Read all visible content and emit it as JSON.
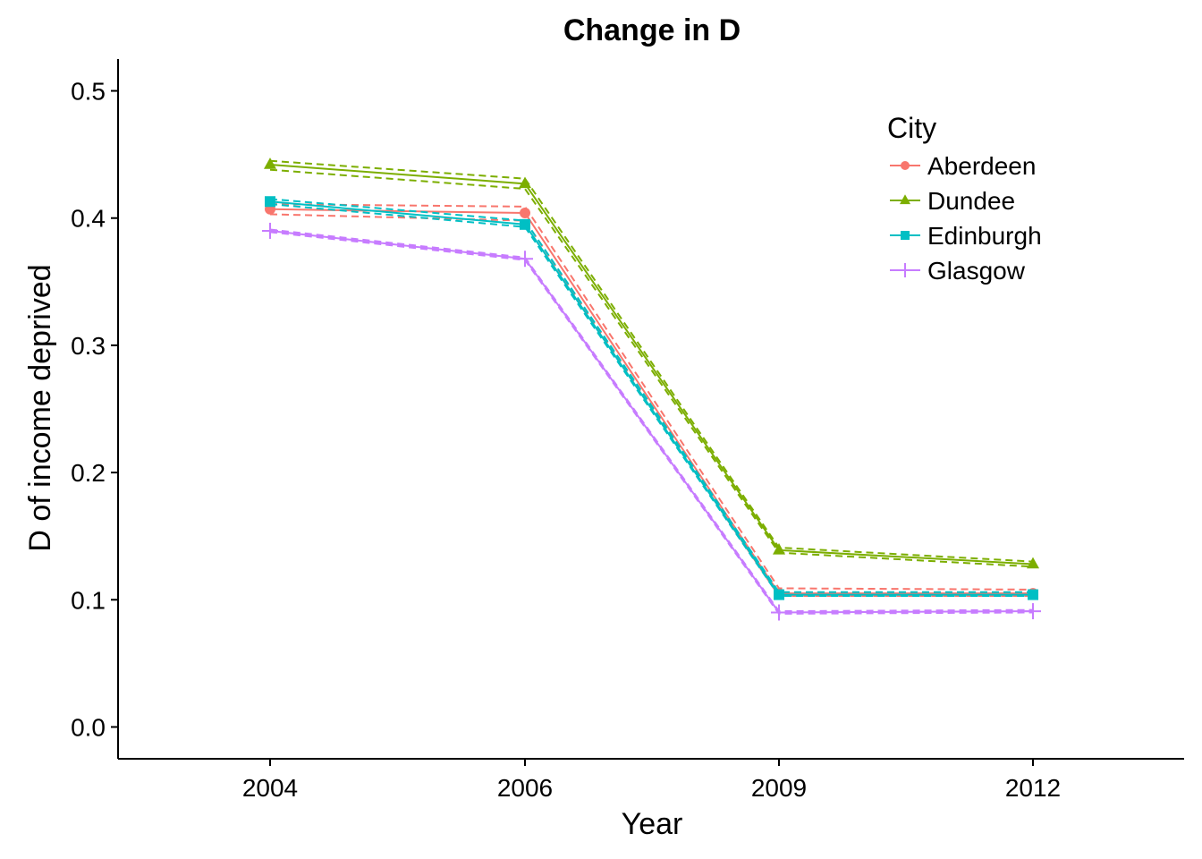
{
  "chart_data": {
    "type": "line",
    "title": "Change in D",
    "xlabel": "Year",
    "ylabel": "D of income deprived",
    "categories": [
      "2004",
      "2006",
      "2009",
      "2012"
    ],
    "ylim": [
      -0.025,
      0.525
    ],
    "yticks": [
      "0.0",
      "0.1",
      "0.2",
      "0.3",
      "0.4",
      "0.5"
    ],
    "grid": false,
    "legend": {
      "title": "City",
      "position": "top-right"
    },
    "series": [
      {
        "name": "Aberdeen",
        "color": "#F8766D",
        "marker": "circle",
        "values": [
          0.407,
          0.404,
          0.105,
          0.105
        ],
        "lower": [
          0.403,
          0.398,
          0.103,
          0.103
        ],
        "upper": [
          0.411,
          0.409,
          0.109,
          0.108
        ]
      },
      {
        "name": "Dundee",
        "color": "#7CAE00",
        "marker": "triangle",
        "values": [
          0.442,
          0.427,
          0.139,
          0.128
        ],
        "lower": [
          0.438,
          0.423,
          0.137,
          0.126
        ],
        "upper": [
          0.445,
          0.431,
          0.141,
          0.13
        ]
      },
      {
        "name": "Edinburgh",
        "color": "#00BFC4",
        "marker": "square",
        "values": [
          0.413,
          0.395,
          0.104,
          0.104
        ],
        "lower": [
          0.411,
          0.393,
          0.103,
          0.103
        ],
        "upper": [
          0.415,
          0.398,
          0.106,
          0.106
        ]
      },
      {
        "name": "Glasgow",
        "color": "#C77CFF",
        "marker": "plus",
        "values": [
          0.39,
          0.368,
          0.09,
          0.091
        ],
        "lower": [
          0.389,
          0.367,
          0.089,
          0.09
        ],
        "upper": [
          0.391,
          0.369,
          0.091,
          0.092
        ]
      }
    ]
  }
}
